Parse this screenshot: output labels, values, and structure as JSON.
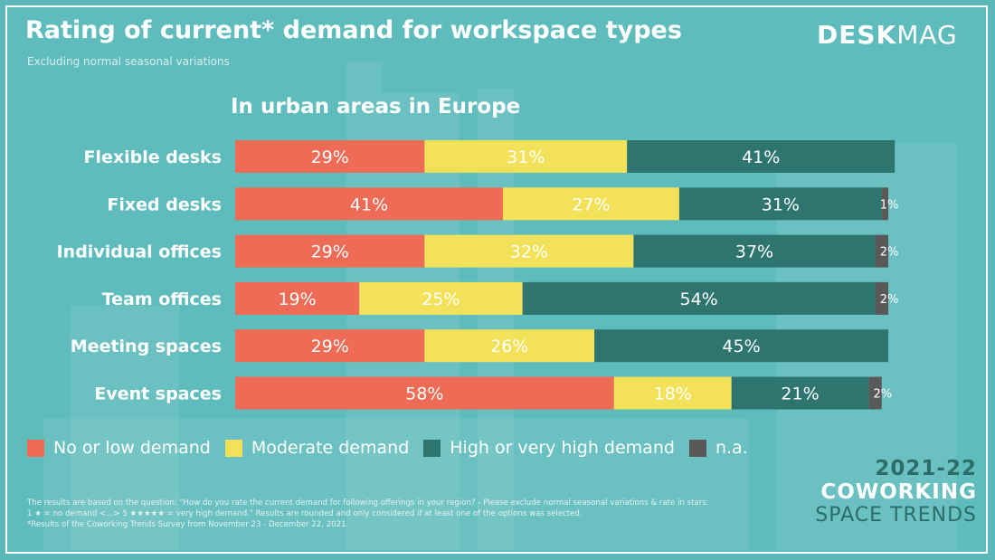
{
  "header": {
    "title": "Rating of current* demand for workspace types",
    "subtitle": "Excluding normal seasonal variations",
    "logo_bold": "DESK",
    "logo_light": "MAG"
  },
  "colors": {
    "low": "#ee6b55",
    "moderate": "#f4e15a",
    "high": "#2e7570",
    "na": "#595959",
    "background": "#5fbcbc"
  },
  "chart_data": {
    "type": "bar",
    "orientation": "horizontal-stacked",
    "title": "In urban areas in Europe",
    "categories": [
      "Flexible desks",
      "Fixed desks",
      "Individual offices",
      "Team offices",
      "Meeting spaces",
      "Event spaces"
    ],
    "series": [
      {
        "name": "No or low demand",
        "key": "low",
        "values": [
          29,
          41,
          29,
          19,
          29,
          58
        ],
        "labels": [
          "29%",
          "41%",
          "29%",
          "19%",
          "29%",
          "58%"
        ]
      },
      {
        "name": "Moderate demand",
        "key": "moderate",
        "values": [
          31,
          27,
          32,
          25,
          26,
          18
        ],
        "labels": [
          "31%",
          "27%",
          "32%",
          "25%",
          "26%",
          "18%"
        ]
      },
      {
        "name": "High or very high demand",
        "key": "high",
        "values": [
          41,
          31,
          37,
          54,
          45,
          21
        ],
        "labels": [
          "41%",
          "31%",
          "37%",
          "54%",
          "45%",
          "21%"
        ]
      },
      {
        "name": "n.a.",
        "key": "na",
        "values": [
          0,
          1,
          2,
          2,
          0,
          2
        ],
        "labels": [
          "",
          "1%",
          "2%",
          "2%",
          "",
          "2%"
        ]
      }
    ],
    "xlim": [
      0,
      101
    ],
    "legend_position": "bottom"
  },
  "legend": [
    {
      "label": "No or low demand",
      "color": "#ee6b55"
    },
    {
      "label": "Moderate demand",
      "color": "#f4e15a"
    },
    {
      "label": "High or very high demand",
      "color": "#2e7570"
    },
    {
      "label": "n.a.",
      "color": "#595959"
    }
  ],
  "brand": {
    "years": "2021-22",
    "line1": "COWORKING",
    "line2": "SPACE TRENDS"
  },
  "footnote": {
    "line1": "The results are based on the question: \"How do you rate the current demand for following offerings in your region? - Please exclude normal seasonal variations & rate in stars:",
    "line2": "1 ★ = no demand <...> 5 ★★★★★ = very high demand.\" Results are rounded and only considered if at least one of the options was selected.",
    "line3": "*Results of the Coworking Trends Survey from November 23 - December 22, 2021."
  }
}
